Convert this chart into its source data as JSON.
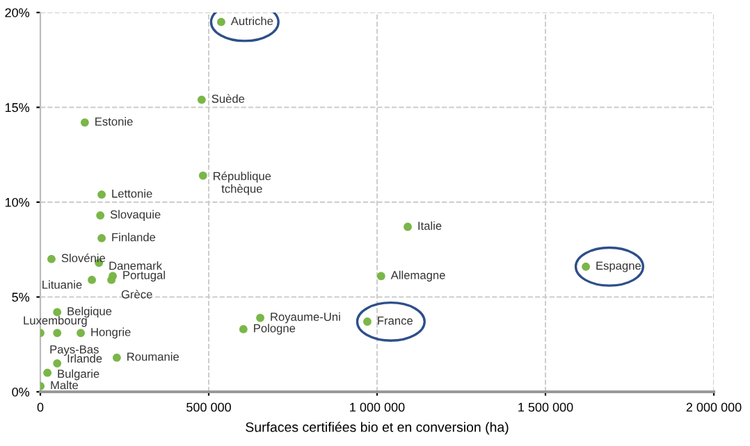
{
  "chart_data": {
    "type": "scatter",
    "xlabel": "Surfaces certifiées bio et en conversion (ha)",
    "x": [
      537000,
      479000,
      132000,
      483000,
      182000,
      178000,
      182000,
      33000,
      174000,
      215000,
      211000,
      153000,
      1091000,
      1012000,
      1620000,
      653000,
      603000,
      971000,
      50000,
      0,
      50000,
      120000,
      227000,
      50000,
      21000,
      300
    ],
    "series": [
      {
        "color": "#7ab648",
        "values": [
          19.5,
          15.4,
          14.2,
          11.4,
          10.4,
          9.3,
          8.1,
          7.0,
          6.8,
          6.1,
          5.9,
          5.9,
          8.7,
          6.1,
          6.6,
          3.9,
          3.3,
          3.7,
          4.2,
          3.1,
          3.1,
          3.1,
          1.8,
          1.5,
          1.0,
          0.3
        ],
        "value_labels": [
          "Autriche",
          "Suède",
          "Estonie",
          "République\ntchèque",
          "Lettonie",
          "Slovaquie",
          "Finlande",
          "Slovénie",
          "Danemark",
          "Portugal",
          "Grèce",
          "Lituanie",
          "Italie",
          "Allemagne",
          "Espagne",
          "Royaume-Uni",
          "Pologne",
          "France",
          "Belgique",
          "Luxembourg",
          "Pays-Bas",
          "Hongrie",
          "Roumanie",
          "Irlande",
          "Bulgarie",
          "Malte"
        ]
      }
    ],
    "xlim": [
      0,
      2000000
    ],
    "xticks": [
      {
        "value": 0,
        "label": "0"
      },
      {
        "value": 500000,
        "label": "500 000"
      },
      {
        "value": 1000000,
        "label": "1 000 000"
      },
      {
        "value": 1500000,
        "label": "1 500 000"
      },
      {
        "value": 2000000,
        "label": "2 000 000"
      }
    ],
    "ylim": [
      0,
      20
    ],
    "yticks": [
      {
        "value": 0,
        "label": "0%"
      },
      {
        "value": 5,
        "label": "5%"
      },
      {
        "value": 10,
        "label": "10%"
      },
      {
        "value": 15,
        "label": "15%"
      },
      {
        "value": 20,
        "label": "20%"
      }
    ],
    "grid": true,
    "marker": "circle"
  }
}
